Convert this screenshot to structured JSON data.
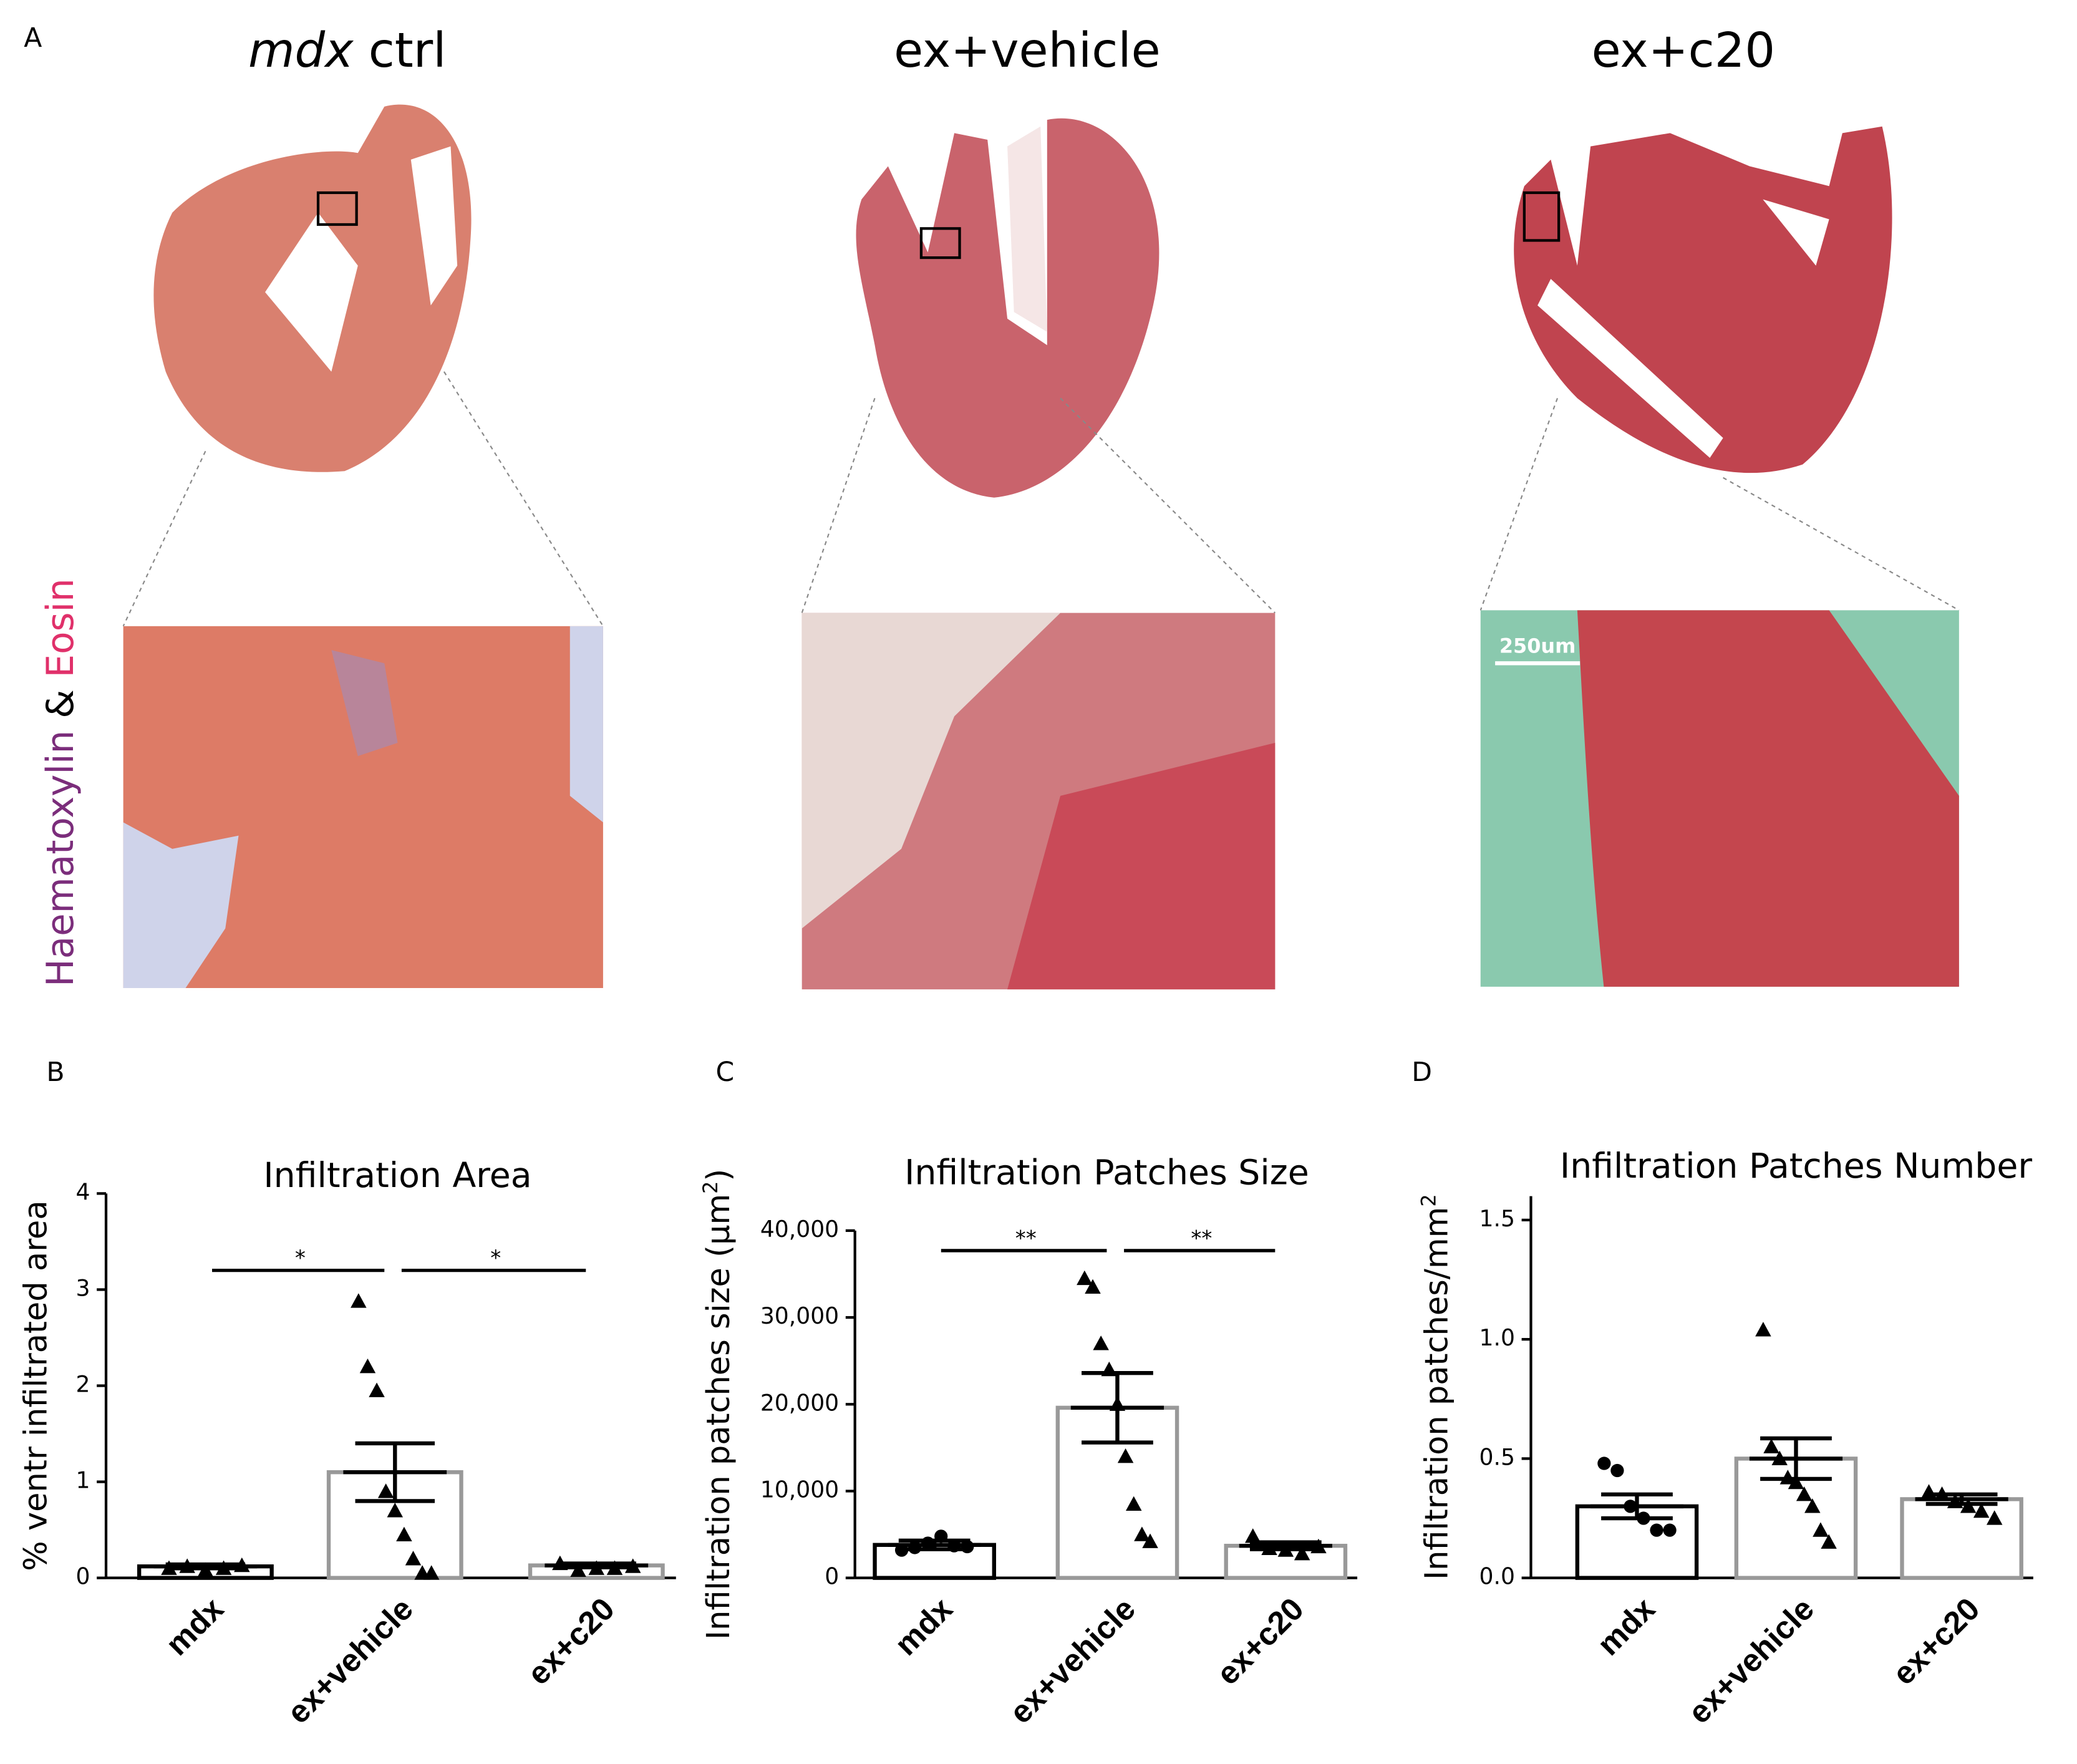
{
  "panel_a": {
    "label": "A",
    "titles": [
      {
        "italic": "mdx",
        "rest": "ctrl"
      },
      {
        "rest": "ex+vehicle"
      },
      {
        "rest": "ex+c20"
      }
    ],
    "stain": [
      "Haematoxylin",
      "&",
      "Eosin"
    ],
    "scale_bar": "250um"
  },
  "chart_data": [
    {
      "type": "bar",
      "label": "B",
      "title": "Infiltration Area",
      "y_label": [
        "% ventr infiltrated area"
      ],
      "categories": [
        "mdx",
        "ex+vehicle",
        "ex+c20"
      ],
      "values": [
        0.12,
        1.1,
        0.13
      ],
      "errors": [
        0.02,
        0.3,
        0.02
      ],
      "points": [
        [
          0.1,
          0.12,
          0.08,
          0.1,
          0.13
        ],
        [
          2.88,
          2.2,
          1.95,
          0.9,
          0.7,
          0.45,
          0.2,
          0.05,
          0.05
        ],
        [
          0.15,
          0.08,
          0.1,
          0.1,
          0.12
        ]
      ],
      "bar_colors": [
        "#000000",
        "#999999",
        "#999999"
      ],
      "markers": [
        "triangle",
        "triangle",
        "triangle"
      ],
      "significance": [
        {
          "pair": [
            0,
            1
          ],
          "label": "*"
        },
        {
          "pair": [
            1,
            2
          ],
          "label": "*"
        }
      ],
      "ylim": [
        0,
        4
      ],
      "yticks": [
        0,
        1,
        2,
        3,
        4
      ]
    },
    {
      "type": "bar",
      "label": "C",
      "title": "Infiltration Patches Size",
      "y_label": [
        "Infiltration patches size (μm",
        "2",
        ")"
      ],
      "categories": [
        "mdx",
        "ex+vehicle",
        "ex+c20"
      ],
      "values": [
        3800,
        19600,
        3700
      ],
      "errors": [
        500,
        4000,
        400
      ],
      "points": [
        [
          3200,
          3500,
          4000,
          4800,
          3700,
          3600
        ],
        [
          34500,
          33500,
          27000,
          24000,
          20000,
          14000,
          8500,
          5000,
          4200
        ],
        [
          4800,
          3400,
          3200,
          2800,
          3600
        ]
      ],
      "bar_colors": [
        "#000000",
        "#999999",
        "#999999"
      ],
      "markers": [
        "circle",
        "triangle",
        "triangle"
      ],
      "significance": [
        {
          "pair": [
            0,
            1
          ],
          "label": "**"
        },
        {
          "pair": [
            1,
            2
          ],
          "label": "**"
        }
      ],
      "ylim": [
        0,
        40000
      ],
      "yticks": [
        0,
        {
          "value": 10000,
          "label": "10,000"
        },
        {
          "value": 20000,
          "label": "20,000"
        },
        {
          "value": 30000,
          "label": "30,000"
        },
        {
          "value": 40000,
          "label": "40,000"
        }
      ]
    },
    {
      "type": "bar",
      "label": "D",
      "title": "Infiltration Patches Number",
      "y_label": [
        "Infiltration patches/mm",
        "2"
      ],
      "categories": [
        "mdx",
        "ex+vehicle",
        "ex+c20"
      ],
      "values": [
        0.3,
        0.5,
        0.33
      ],
      "errors": [
        0.05,
        0.085,
        0.02
      ],
      "points": [
        [
          0.48,
          0.45,
          0.3,
          0.25,
          0.2,
          0.2
        ],
        [
          1.04,
          0.55,
          0.5,
          0.42,
          0.4,
          0.35,
          0.3,
          0.2,
          0.15
        ],
        [
          0.36,
          0.35,
          0.32,
          0.3,
          0.28,
          0.25
        ]
      ],
      "bar_colors": [
        "#000000",
        "#999999",
        "#999999"
      ],
      "markers": [
        "circle",
        "triangle",
        "triangle"
      ],
      "significance": [],
      "ylim": [
        0,
        1.6
      ],
      "yticks": [
        {
          "value": 0,
          "label": "0.0"
        },
        0.5,
        {
          "value": 1,
          "label": "1.0"
        },
        1.5
      ]
    }
  ]
}
